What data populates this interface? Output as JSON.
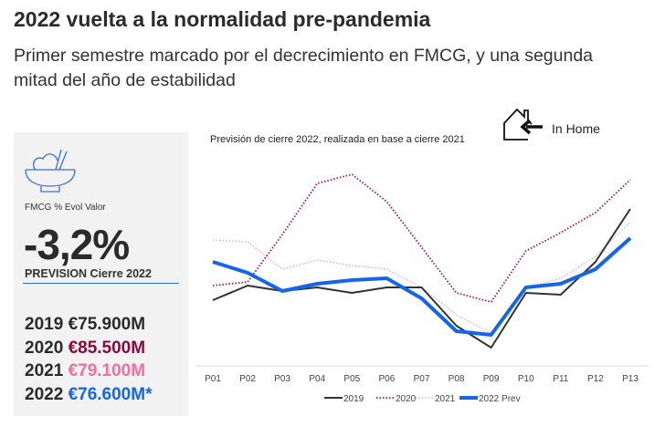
{
  "header": {
    "title": "2022 vuelta a la normalidad pre-pandemia",
    "subtitle": "Primer semestre marcado por el decrecimiento en FMCG, y una segunda mitad del año de estabilidad"
  },
  "panel": {
    "icon": "rice-bowl-icon",
    "kpi_label": "FMCG % Evol Valor",
    "kpi_value": "-3,2%",
    "kpi_sub": "PREVISION Cierre 2022",
    "years": [
      {
        "year": "2019",
        "value": "€75.900M",
        "color": "#2b2b2b"
      },
      {
        "year": "2020",
        "value": "€85.500M",
        "color": "#8b0a3a"
      },
      {
        "year": "2021",
        "value": "€79.100M",
        "color": "#f06ea0"
      },
      {
        "year": "2022",
        "value": "€76.600M*",
        "color": "#1565e8"
      }
    ]
  },
  "inhome": {
    "icon": "house-arrow-icon",
    "label": "In Home"
  },
  "chart_data": {
    "type": "line",
    "title": "Previsión de cierre 2022, realizada en base a cierre 2021",
    "categories": [
      "P01",
      "P02",
      "P03",
      "P04",
      "P05",
      "P06",
      "P07",
      "P08",
      "P09",
      "P10",
      "P11",
      "P12",
      "P13"
    ],
    "ylim": [
      0,
      110
    ],
    "y_axis_visible": false,
    "grid": false,
    "legend": "bottom",
    "series": [
      {
        "name": "2019",
        "color": "#333333",
        "style": "solid",
        "values": [
          36,
          44,
          41,
          43,
          40,
          43,
          43,
          22,
          10,
          40,
          39,
          57,
          86
        ]
      },
      {
        "name": "2020",
        "color": "#a0173f",
        "style": "dotted",
        "values": [
          44,
          46,
          72,
          100,
          105,
          90,
          65,
          40,
          35,
          63,
          73,
          84,
          102
        ]
      },
      {
        "name": "2021",
        "color": "#f4a6bd",
        "style": "dotted",
        "values": [
          69,
          68,
          53,
          58,
          55,
          53,
          43,
          28,
          18,
          43,
          48,
          60,
          79
        ]
      },
      {
        "name": "2022 Prev",
        "color": "#1565e8",
        "style": "thick",
        "values": [
          57,
          51,
          41,
          45,
          47,
          48,
          37,
          19,
          17,
          43,
          45,
          53,
          70
        ]
      }
    ]
  }
}
